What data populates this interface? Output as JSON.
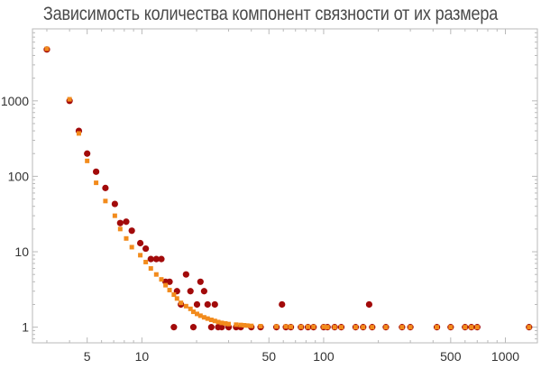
{
  "title": "Зависимость количества компонент связности от их размера",
  "colors": {
    "series_observed": "#a20a0a",
    "series_model": "#f28b1c",
    "frame": "#b9b9b9",
    "text": "#333333"
  },
  "chart_data": {
    "type": "scatter",
    "title": "Зависимость количества компонент связности от их размера",
    "xlabel": "",
    "ylabel": "",
    "xscale": "log",
    "yscale": "log",
    "xlim": [
      2.5,
      1500
    ],
    "ylim": [
      0.62,
      9000
    ],
    "grid": false,
    "x_tick_labels": [
      "5",
      "10",
      "50",
      "100",
      "500",
      "1000"
    ],
    "x_ticks": [
      5,
      10,
      50,
      100,
      500,
      1000
    ],
    "y_tick_labels": [
      "1",
      "10",
      "100",
      "1000"
    ],
    "y_ticks": [
      1,
      10,
      100,
      1000
    ],
    "series": [
      {
        "marker": "circle",
        "points": [
          [
            3,
            4800
          ],
          [
            4,
            1000
          ],
          [
            4.5,
            400
          ],
          [
            5,
            200
          ],
          [
            5.6,
            115
          ],
          [
            6.3,
            70
          ],
          [
            7.1,
            43
          ],
          [
            7.6,
            24
          ],
          [
            8.2,
            25
          ],
          [
            8.8,
            19
          ],
          [
            9.8,
            13
          ],
          [
            10.5,
            11
          ],
          [
            11.2,
            8
          ],
          [
            12,
            8
          ],
          [
            12.8,
            8
          ],
          [
            13.5,
            4
          ],
          [
            14.2,
            4
          ],
          [
            15,
            1
          ],
          [
            15.6,
            3
          ],
          [
            16.4,
            2
          ],
          [
            17.5,
            5
          ],
          [
            18.5,
            3
          ],
          [
            19.2,
            1
          ],
          [
            20.1,
            2
          ],
          [
            21,
            4
          ],
          [
            22,
            3
          ],
          [
            23,
            2
          ],
          [
            24.1,
            1
          ],
          [
            25.2,
            2
          ],
          [
            26.3,
            1
          ],
          [
            27.5,
            1
          ],
          [
            30,
            1
          ],
          [
            33,
            1
          ],
          [
            35,
            1
          ],
          [
            40,
            1
          ],
          [
            45,
            1
          ],
          [
            55,
            1
          ],
          [
            59,
            2
          ],
          [
            62,
            1
          ],
          [
            66,
            1
          ],
          [
            75,
            1
          ],
          [
            82,
            1
          ],
          [
            88,
            1
          ],
          [
            100,
            1
          ],
          [
            105,
            1
          ],
          [
            115,
            1
          ],
          [
            125,
            1
          ],
          [
            150,
            1
          ],
          [
            165,
            1
          ],
          [
            178,
            2
          ],
          [
            185,
            1
          ],
          [
            220,
            1
          ],
          [
            270,
            1
          ],
          [
            300,
            1
          ],
          [
            420,
            1
          ],
          [
            500,
            1
          ],
          [
            600,
            1
          ],
          [
            650,
            1
          ],
          [
            700,
            1
          ],
          [
            1350,
            1
          ]
        ]
      },
      {
        "marker": "square",
        "points": [
          [
            3,
            4900
          ],
          [
            4,
            1050
          ],
          [
            4.5,
            370
          ],
          [
            5,
            160
          ],
          [
            5.6,
            82
          ],
          [
            6.3,
            47
          ],
          [
            7.1,
            30
          ],
          [
            7.6,
            20
          ],
          [
            8.2,
            15
          ],
          [
            8.8,
            11.5
          ],
          [
            9.8,
            9
          ],
          [
            10.5,
            7.3
          ],
          [
            11.2,
            6
          ],
          [
            12,
            5
          ],
          [
            12.8,
            4.3
          ],
          [
            13.5,
            3.6
          ],
          [
            14.2,
            3.1
          ],
          [
            15,
            2.7
          ],
          [
            15.6,
            2.4
          ],
          [
            16.4,
            2.1
          ],
          [
            17.5,
            1.9
          ],
          [
            18.5,
            1.75
          ],
          [
            19.2,
            1.6
          ],
          [
            20.1,
            1.5
          ],
          [
            21,
            1.42
          ],
          [
            22,
            1.35
          ],
          [
            23,
            1.3
          ],
          [
            24.1,
            1.25
          ],
          [
            25.2,
            1.21
          ],
          [
            26.3,
            1.17
          ],
          [
            27.5,
            1.14
          ],
          [
            28.8,
            1.12
          ],
          [
            30,
            1.1
          ],
          [
            33,
            1.08
          ],
          [
            35,
            1.07
          ],
          [
            36.5,
            1.06
          ],
          [
            38,
            1.05
          ],
          [
            40,
            1.04
          ],
          [
            45,
            1.03
          ],
          [
            55,
            1.02
          ],
          [
            62,
            1.02
          ],
          [
            66,
            1.01
          ],
          [
            75,
            1.01
          ],
          [
            82,
            1.01
          ],
          [
            88,
            1.01
          ],
          [
            100,
            1.01
          ],
          [
            105,
            1
          ],
          [
            115,
            1
          ],
          [
            125,
            1
          ],
          [
            150,
            1
          ],
          [
            165,
            1
          ],
          [
            185,
            1
          ],
          [
            220,
            1
          ],
          [
            270,
            1
          ],
          [
            300,
            1
          ],
          [
            420,
            1
          ],
          [
            500,
            1
          ],
          [
            600,
            1
          ],
          [
            650,
            1
          ],
          [
            700,
            1
          ],
          [
            1350,
            1
          ]
        ]
      }
    ]
  }
}
